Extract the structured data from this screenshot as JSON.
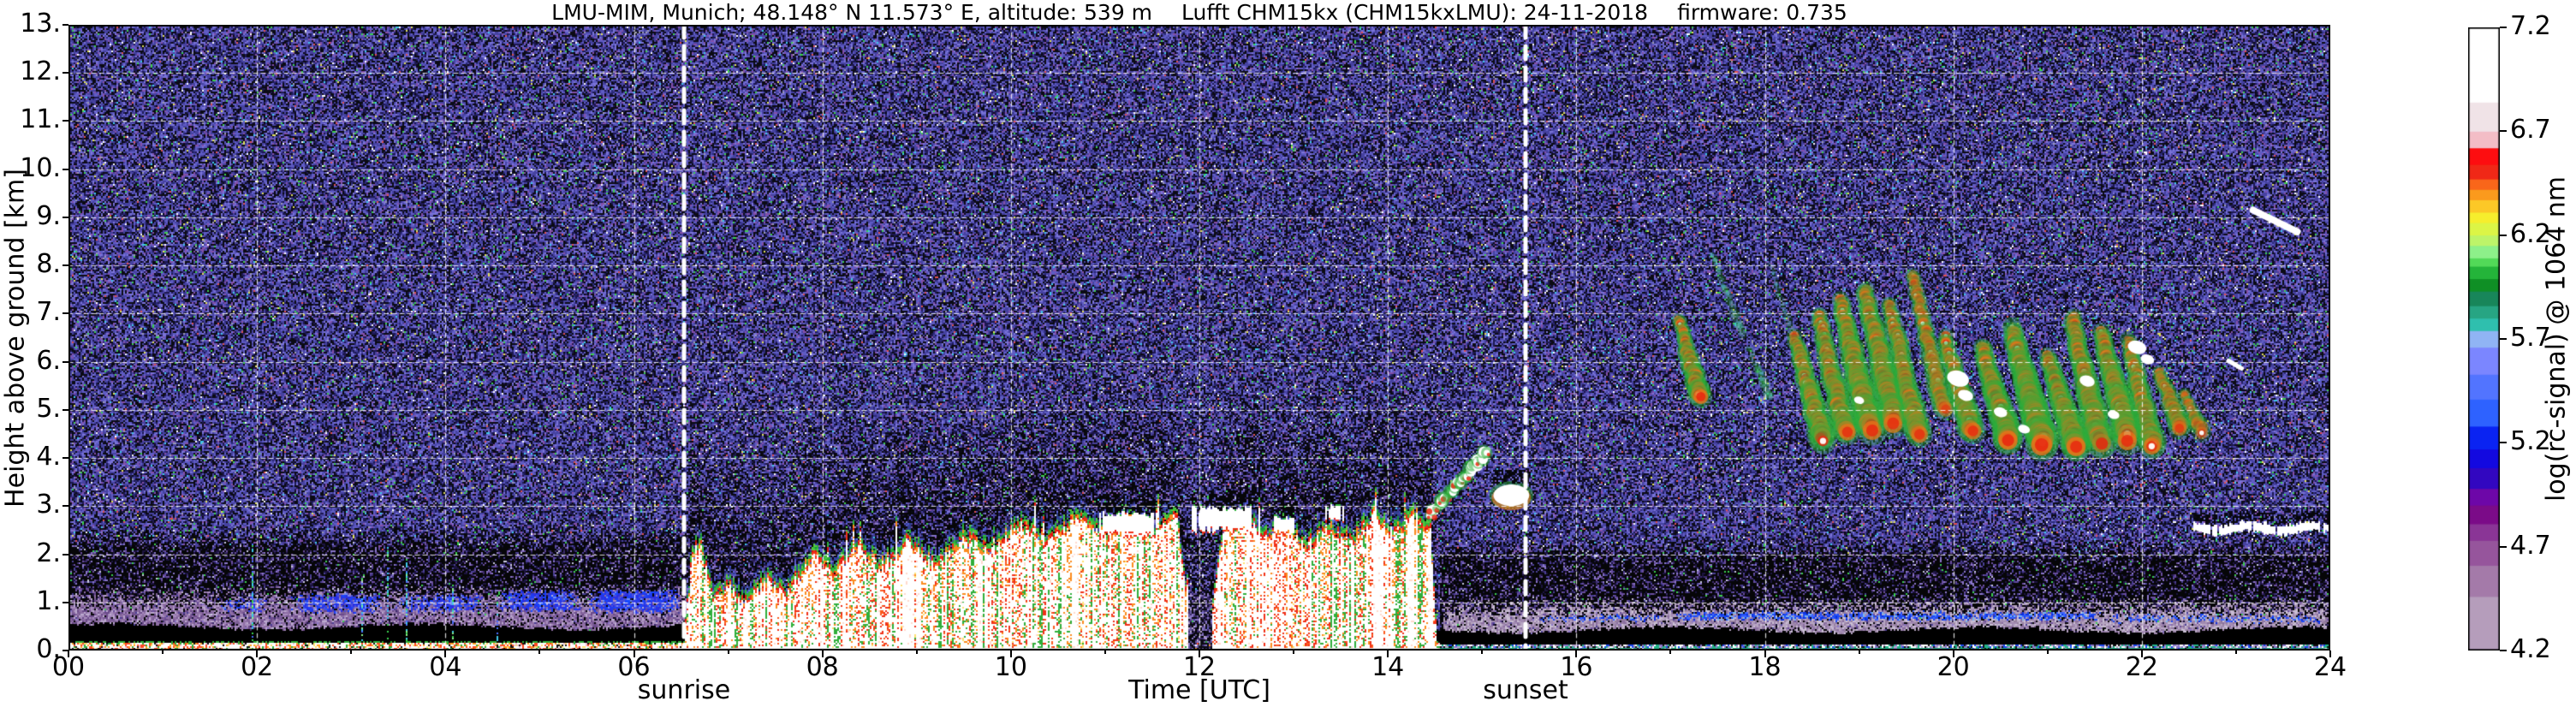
{
  "figure": {
    "title_parts": [
      "LMU-MIM, Munich; 48.148° N 11.573° E, altitude: 539 m",
      "Lufft CHM15kx (CHM15kxLMU): 24-11-2018",
      "firmware: 0.735"
    ]
  },
  "axes": {
    "x": {
      "label": "Time [UTC]",
      "range": [
        0,
        24
      ],
      "ticks": [
        "00",
        "02",
        "04",
        "06",
        "08",
        "10",
        "12",
        "14",
        "16",
        "18",
        "20",
        "22",
        "24"
      ]
    },
    "y": {
      "label": "Height above ground [km]",
      "range": [
        0,
        13
      ],
      "ticks": [
        "0.",
        "1.",
        "2.",
        "3.",
        "4.",
        "5.",
        "6.",
        "7.",
        "8.",
        "9.",
        "10.",
        "11.",
        "12.",
        "13."
      ]
    }
  },
  "annotations": {
    "sunrise": {
      "label": "sunrise",
      "time": 6.53
    },
    "sunset": {
      "label": "sunset",
      "time": 15.46
    }
  },
  "colorbar": {
    "label": "log(rc-signal) @ 1064 nm",
    "range": [
      4.2,
      7.2
    ],
    "tick_values": [
      7.2,
      6.7,
      6.2,
      5.7,
      5.2,
      4.7,
      4.2
    ],
    "tick_labels": [
      "7.2",
      "6.7",
      "6.2",
      "5.7",
      "5.2",
      "4.7",
      "4.2"
    ],
    "segments": [
      [
        4.2,
        4.46,
        "#b59dbb"
      ],
      [
        4.46,
        4.61,
        "#a47aa9"
      ],
      [
        4.61,
        4.73,
        "#96559c"
      ],
      [
        4.73,
        4.81,
        "#8a3596"
      ],
      [
        4.81,
        4.9,
        "#7b0b88"
      ],
      [
        4.9,
        4.98,
        "#6d07a8"
      ],
      [
        4.98,
        5.08,
        "#3207c0"
      ],
      [
        5.08,
        5.17,
        "#1309e0"
      ],
      [
        5.17,
        5.28,
        "#0a23f2"
      ],
      [
        5.28,
        5.41,
        "#2e62ff"
      ],
      [
        5.41,
        5.53,
        "#5274ff"
      ],
      [
        5.53,
        5.66,
        "#7b86ff"
      ],
      [
        5.66,
        5.74,
        "#90b4f4"
      ],
      [
        5.74,
        5.8,
        "#2fbfae"
      ],
      [
        5.8,
        5.86,
        "#27a583"
      ],
      [
        5.86,
        5.93,
        "#18865a"
      ],
      [
        5.93,
        5.99,
        "#0f8f25"
      ],
      [
        5.99,
        6.05,
        "#24b43a"
      ],
      [
        6.05,
        6.09,
        "#52d958"
      ],
      [
        6.09,
        6.15,
        "#8df08a"
      ],
      [
        6.15,
        6.2,
        "#bdf469"
      ],
      [
        6.2,
        6.26,
        "#dcf546"
      ],
      [
        6.26,
        6.31,
        "#f6ee2d"
      ],
      [
        6.31,
        6.37,
        "#fcc827"
      ],
      [
        6.37,
        6.42,
        "#fb9a1d"
      ],
      [
        6.42,
        6.47,
        "#f9661a"
      ],
      [
        6.47,
        6.54,
        "#f02817"
      ],
      [
        6.54,
        6.62,
        "#fd0d10"
      ],
      [
        6.62,
        6.7,
        "#f3bdc6"
      ],
      [
        6.7,
        6.84,
        "#f0e3e7"
      ],
      [
        6.84,
        7.2,
        "#ffffff"
      ]
    ]
  },
  "chart_data": {
    "type": "heatmap",
    "title": "LMU-MIM, Munich; 48.148° N 11.573° E, altitude: 539 m  Lufft CHM15kx (CHM15kxLMU): 24-11-2018  firmware: 0.735",
    "xlabel": "Time [UTC]",
    "ylabel": "Height above ground [km]",
    "x_range_hours": [
      0,
      24
    ],
    "y_range_km": [
      0,
      13
    ],
    "value_label": "log(rc-signal) @ 1064 nm",
    "value_range": [
      4.2,
      7.2
    ],
    "grid": {
      "x_step_hours": 2,
      "y_step_km": 1,
      "style": "white dashed",
      "color": "rgba(255,255,255,0.85)",
      "dash": [
        5,
        4
      ]
    },
    "sun_lines": {
      "color": "#ffffff",
      "width": 5,
      "dash": [
        15,
        10
      ]
    },
    "features": {
      "noise_background": {
        "description": "speckled blue/purple/black instrument noise filling the panel, sparse bright green/cyan/yellow/white specks",
        "normal_palette": [
          [
            "#0b0b14",
            0.27
          ],
          [
            "#1d1850",
            0.13
          ],
          [
            "#4642a0",
            0.22
          ],
          [
            "#5f5cc4",
            0.17
          ],
          [
            "#7b74d8",
            0.08
          ],
          [
            "#8450a8",
            0.06
          ],
          [
            "#2a2a78",
            0.04
          ],
          [
            "#9a9ab0",
            0.015
          ],
          [
            "#3bd04f",
            0.012
          ],
          [
            "#3ec8ea",
            0.008
          ],
          [
            "#e0e058",
            0.005
          ],
          [
            "#e05050",
            0.004
          ],
          [
            "#ffffff",
            0.006
          ]
        ],
        "dark_palette": [
          [
            "#060608",
            0.62
          ],
          [
            "#1c1340",
            0.12
          ],
          [
            "#4a3f96",
            0.08
          ],
          [
            "#6a4e9e",
            0.07
          ],
          [
            "#8a77c9",
            0.05
          ],
          [
            "#3a2a6a",
            0.04
          ],
          [
            "#c8c8e0",
            0.01
          ],
          [
            "#3bd04f",
            0.01
          ]
        ]
      },
      "attenuated_dark_zones": {
        "description": "nearly black low-noise zones: below 2.6 km before sunrise, below 2.3 km after ~14:30, and above the daytime cloud tops",
        "night": {
          "t": [
            0,
            6.55
          ],
          "h": [
            0.35,
            2.6
          ],
          "fade_top_km": 0.5
        },
        "evening": {
          "t": [
            14.55,
            24
          ],
          "h": [
            0.3,
            2.35
          ],
          "fade_top_km": 0.45
        },
        "above_convection_km": 2.8
      },
      "surface_haze": {
        "description": "mauve/purple aerosol haze band near the surface",
        "night": {
          "t": [
            0,
            6.55
          ],
          "h": [
            0.4,
            1.38
          ],
          "p": 0.8,
          "colors": [
            [
              "#8f6fa5",
              0.3
            ],
            [
              "#a78dbd",
              0.22
            ],
            [
              "#6b4a8a",
              0.18
            ],
            [
              "#bcaacf",
              0.15
            ],
            [
              "#7c5e96",
              0.15
            ]
          ]
        },
        "evening": {
          "t": [
            14.6,
            24
          ],
          "h": [
            0.28,
            1.12
          ],
          "p": 0.85,
          "colors": [
            [
              "#a38cb3",
              0.28
            ],
            [
              "#b7a6c2",
              0.25
            ],
            [
              "#8a6fa0",
              0.17
            ],
            [
              "#cabfd4",
              0.18
            ],
            [
              "#96809f",
              0.12
            ]
          ]
        }
      },
      "residual_layer_patches": [
        [
          1.55,
          2.15,
          0.8,
          1.15,
          0.5
        ],
        [
          2.35,
          3.35,
          0.78,
          1.22,
          0.7
        ],
        [
          3.45,
          4.45,
          0.78,
          1.2,
          0.6
        ],
        [
          4.55,
          5.45,
          0.8,
          1.28,
          0.8
        ],
        [
          5.5,
          6.52,
          0.78,
          1.3,
          0.9
        ]
      ],
      "residual_layer_colors": [
        [
          "#2b2fe2",
          0.3
        ],
        [
          "#1f3cf0",
          0.25
        ],
        [
          "#4b4fd8",
          0.2
        ],
        [
          "#1548ff",
          0.15
        ],
        [
          "#6f8df5",
          0.1
        ]
      ],
      "evening_blue_layer": [
        [
          15.55,
          17.0,
          0.6,
          0.78,
          0.45
        ],
        [
          17.0,
          21.6,
          0.62,
          0.84,
          0.8
        ],
        [
          21.6,
          23.97,
          0.58,
          0.78,
          0.5
        ]
      ],
      "evening_blue_colors": [
        [
          "#1d49f2",
          0.35
        ],
        [
          "#0a30e0",
          0.25
        ],
        [
          "#3f66ff",
          0.25
        ],
        [
          "#79b7f2",
          0.15
        ]
      ],
      "overlap_black_band": {
        "description": "solid black band of incomplete overlap just above the surface",
        "h": [
          0.12,
          0.47
        ],
        "wave_amp_km": 0.06
      },
      "surface_signal": {
        "description": "intense white/red speckled near-surface return with green cap",
        "night_palette": [
          [
            "#ffffff",
            0.5
          ],
          [
            "#ff4a20",
            0.14
          ],
          [
            "#ffa020",
            0.09
          ],
          [
            "#ffe070",
            0.06
          ],
          [
            "#2fae3a",
            0.09
          ],
          [
            "#101010",
            0.07
          ],
          [
            "#f0c0d0",
            0.05
          ]
        ],
        "evening_palette": [
          [
            "#ffffff",
            0.22
          ],
          [
            "#8a77c9",
            0.2
          ],
          [
            "#22b388",
            0.16
          ],
          [
            "#1b47f0",
            0.12
          ],
          [
            "#101010",
            0.18
          ],
          [
            "#b9a6cc",
            0.12
          ]
        ]
      },
      "convective_clouds": {
        "description": "boundary-layer convective clouds between sunrise and ~14:30, white cores, red/orange mottling, green caps, blue fringes, tops 1.5-3 km",
        "t": [
          6.55,
          14.5
        ],
        "gap_t": [
          11.88,
          12.13
        ],
        "gap_palette": [
          [
            "#0a0a12",
            0.45
          ],
          [
            "#3a2a6a",
            0.2
          ],
          [
            "#6a5aa0",
            0.15
          ],
          [
            "#8a77c9",
            0.12
          ],
          [
            "#b9a6cc",
            0.08
          ]
        ],
        "cap_green_colors": [
          [
            "#2fb43c",
            0.5
          ],
          [
            "#57c93f",
            0.3
          ],
          [
            "#16923f",
            0.2
          ]
        ],
        "top_envelope_km": [
          [
            6.55,
            0.3
          ],
          [
            6.6,
            2.2
          ],
          [
            6.7,
            2.3
          ],
          [
            6.85,
            1.2
          ],
          [
            7.0,
            1.5
          ],
          [
            7.15,
            1.1
          ],
          [
            7.4,
            1.6
          ],
          [
            7.6,
            1.3
          ],
          [
            7.9,
            2.2
          ],
          [
            8.1,
            1.7
          ],
          [
            8.35,
            2.3
          ],
          [
            8.6,
            1.9
          ],
          [
            8.9,
            2.4
          ],
          [
            9.2,
            1.9
          ],
          [
            9.5,
            2.5
          ],
          [
            9.8,
            2.2
          ],
          [
            10.1,
            2.8
          ],
          [
            10.4,
            2.4
          ],
          [
            10.7,
            2.9
          ],
          [
            11.0,
            2.5
          ],
          [
            11.2,
            2.9
          ],
          [
            11.5,
            2.6
          ],
          [
            11.75,
            2.9
          ],
          [
            11.88,
            0.9
          ],
          [
            12.13,
            0.9
          ],
          [
            12.25,
            2.7
          ],
          [
            12.5,
            2.9
          ],
          [
            12.7,
            2.5
          ],
          [
            12.9,
            2.8
          ],
          [
            13.1,
            2.3
          ],
          [
            13.35,
            2.7
          ],
          [
            13.6,
            2.4
          ],
          [
            13.85,
            2.95
          ],
          [
            14.05,
            2.6
          ],
          [
            14.25,
            3.0
          ],
          [
            14.45,
            2.6
          ],
          [
            14.5,
            0.5
          ]
        ]
      },
      "cloud_decks": [
        [
          10.9,
          11.55,
          2.62,
          0.2
        ],
        [
          11.9,
          12.62,
          2.72,
          0.22
        ],
        [
          12.75,
          13.02,
          2.6,
          0.14
        ],
        [
          13.3,
          13.55,
          2.85,
          0.13
        ]
      ],
      "ascending_plume": {
        "description": "rising cloud trail after convection decays",
        "from": [
          14.45,
          2.8
        ],
        "to": [
          15.05,
          4.15
        ]
      },
      "midlevel_cloud": {
        "description": "small white cloud just after sunset line",
        "t": [
          15.12,
          15.5
        ],
        "h": [
          3.0,
          3.45
        ]
      },
      "virga_streaks": [
        [
          17.08,
          6.85,
          17.32,
          5.25,
          7,
          0.95,
          "red"
        ],
        [
          17.45,
          8.25,
          17.75,
          6.6,
          5,
          0.35,
          "green"
        ],
        [
          17.82,
          6.3,
          18.06,
          5.3,
          5,
          0.5,
          "green"
        ],
        [
          18.05,
          8.0,
          18.32,
          6.45,
          4,
          0.3,
          "green"
        ],
        [
          18.32,
          6.5,
          18.62,
          4.35,
          8,
          0.9,
          "red"
        ],
        [
          18.56,
          7.0,
          18.86,
          4.5,
          8,
          0.85,
          "red"
        ],
        [
          18.8,
          7.25,
          19.12,
          4.6,
          9,
          0.9,
          "red"
        ],
        [
          19.06,
          7.5,
          19.38,
          4.75,
          9,
          0.85,
          "red"
        ],
        [
          19.32,
          7.2,
          19.62,
          4.5,
          8,
          0.8,
          "red"
        ],
        [
          19.56,
          7.85,
          19.9,
          5.0,
          7,
          0.6,
          "red"
        ],
        [
          19.9,
          6.5,
          20.2,
          4.55,
          8,
          0.85,
          "red"
        ],
        [
          20.3,
          6.3,
          20.6,
          4.35,
          9,
          0.95,
          "red"
        ],
        [
          20.62,
          6.7,
          20.95,
          4.3,
          10,
          0.95,
          "red"
        ],
        [
          21.0,
          6.1,
          21.32,
          4.2,
          9,
          0.9,
          "red"
        ],
        [
          21.26,
          6.9,
          21.56,
          4.3,
          9,
          0.85,
          "red"
        ],
        [
          21.56,
          6.6,
          21.86,
          4.4,
          9,
          0.9,
          "red"
        ],
        [
          21.86,
          6.45,
          22.12,
          4.25,
          8,
          0.85,
          "red"
        ],
        [
          22.18,
          5.8,
          22.42,
          4.6,
          7,
          0.7,
          "red"
        ],
        [
          22.45,
          5.35,
          22.63,
          4.55,
          6,
          0.6,
          "red"
        ]
      ],
      "white_cloud_blobs": [
        [
          20.05,
          5.65,
          13
        ],
        [
          20.13,
          5.3,
          9
        ],
        [
          20.5,
          4.95,
          8
        ],
        [
          20.75,
          4.6,
          7
        ],
        [
          21.42,
          5.6,
          9
        ],
        [
          21.7,
          4.9,
          7
        ],
        [
          21.95,
          6.3,
          11
        ],
        [
          22.06,
          6.05,
          8
        ],
        [
          19.0,
          5.2,
          6
        ]
      ],
      "white_streaks": [
        [
          23.18,
          9.15,
          23.65,
          8.7,
          8
        ],
        [
          22.92,
          6.02,
          23.06,
          5.86,
          5
        ]
      ],
      "late_cloud_band": {
        "description": "thin white stratus line at ~2.5 km from 22:30 to 24:00",
        "t": [
          22.55,
          24.0
        ],
        "h_mid": 2.53,
        "h_amp": 0.05,
        "h_halfwidth": 0.09
      },
      "night_plumes": [
        [
          1.94,
          2.25
        ],
        [
          3.12,
          1.5
        ],
        [
          3.38,
          2.15
        ],
        [
          3.58,
          1.9
        ],
        [
          4.08,
          1.35
        ],
        [
          4.55,
          1.15
        ]
      ],
      "small_wisps": [
        [
          16.3,
          2.9,
          3.3
        ],
        [
          16.62,
          3.0,
          3.4
        ]
      ],
      "plume_colors": [
        [
          "#3ec8ea",
          0.3
        ],
        [
          "#3bd04f",
          0.3
        ],
        [
          "#4a6eff",
          0.25
        ],
        [
          "#8cf08c",
          0.15
        ]
      ]
    }
  }
}
